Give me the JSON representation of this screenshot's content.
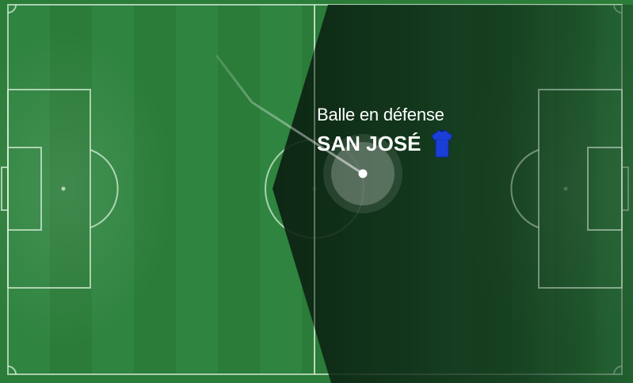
{
  "match_tracker": {
    "status_label": "Balle en défense",
    "team_name": "SAN JOSÉ",
    "team_jersey_icon": "blue-jersey-icon",
    "colors": {
      "pitch": "#2a7a38",
      "attack_zone_overlay": "#0d2a17",
      "lines": "#d9efd9",
      "jersey": "#1a3fd6",
      "ball": "#ffffff"
    },
    "state": "defense"
  }
}
